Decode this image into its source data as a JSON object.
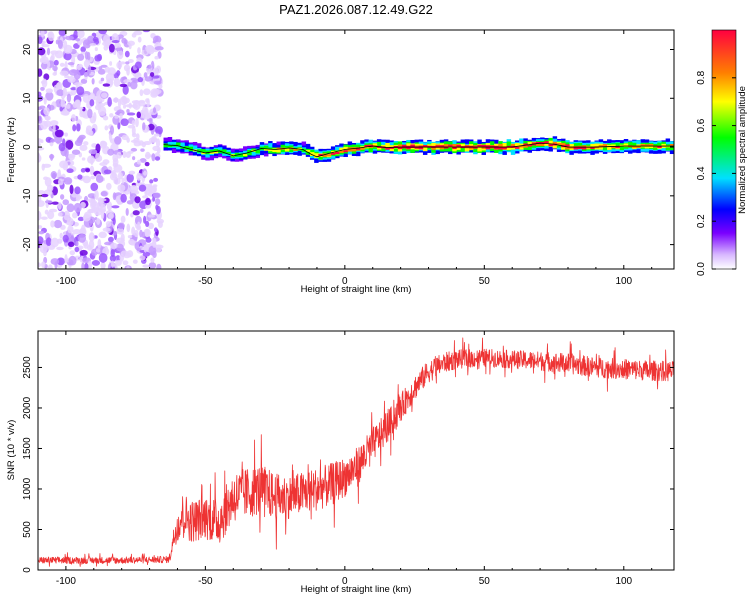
{
  "figure_title": "PAZ1.2026.087.12.49.G22",
  "chart_data": [
    {
      "type": "heatmap",
      "name": "spectrogram",
      "xlabel": "Height of straight line (km)",
      "ylabel": "Frequency (Hz)",
      "xlim": [
        -110,
        118
      ],
      "ylim": [
        -25,
        24
      ],
      "xticks": [
        -100,
        -50,
        0,
        50,
        100
      ],
      "yticks": [
        -20,
        -10,
        0,
        10,
        20
      ],
      "colorbar": {
        "label": "Normalized spectral amplitude",
        "range": [
          0,
          1
        ],
        "ticks": [
          0.0,
          0.2,
          0.4,
          0.6,
          0.8
        ]
      },
      "noise_region_x": [
        -110,
        -66
      ],
      "ridge": {
        "x": [
          -65,
          -60,
          -55,
          -50,
          -45,
          -40,
          -35,
          -30,
          -25,
          -20,
          -15,
          -12,
          -10,
          -5,
          0,
          5,
          10,
          15,
          20,
          30,
          40,
          50,
          60,
          70,
          75,
          80,
          90,
          100,
          110,
          118
        ],
        "f": [
          0.5,
          0.3,
          -0.5,
          -1.2,
          -0.8,
          -1.8,
          -1.2,
          -0.3,
          -0.5,
          -0.2,
          -0.5,
          -1.5,
          -2.0,
          -1.2,
          -0.5,
          -0.2,
          0.2,
          -0.1,
          0.0,
          0.0,
          0.0,
          0.0,
          0.0,
          0.8,
          0.6,
          0.0,
          0.0,
          0.2,
          0.2,
          0.2
        ],
        "amp": [
          0.45,
          0.5,
          0.5,
          0.55,
          0.5,
          0.5,
          0.55,
          0.6,
          0.65,
          0.7,
          0.6,
          0.75,
          0.8,
          0.8,
          0.85,
          0.88,
          0.9,
          0.92,
          0.95,
          0.95,
          0.95,
          0.95,
          0.92,
          0.9,
          0.9,
          0.9,
          0.85,
          0.7,
          0.75,
          0.7
        ]
      }
    },
    {
      "type": "line",
      "name": "snr",
      "xlabel": "Height of straight line (km)",
      "ylabel": "SNR (10 * v/v)",
      "xlim": [
        -110,
        118
      ],
      "ylim": [
        0,
        2950
      ],
      "xticks": [
        -100,
        -50,
        0,
        50,
        100
      ],
      "yticks": [
        0,
        500,
        1000,
        1500,
        2000,
        2500
      ],
      "color": "#ee3333",
      "mean_curve": {
        "x": [
          -110,
          -100,
          -80,
          -63,
          -61,
          -58,
          -55,
          -50,
          -45,
          -40,
          -35,
          -30,
          -25,
          -20,
          -15,
          -10,
          -5,
          0,
          5,
          10,
          15,
          20,
          25,
          30,
          35,
          40,
          50,
          60,
          70,
          80,
          90,
          100,
          110,
          118
        ],
        "y": [
          120,
          120,
          120,
          130,
          450,
          700,
          600,
          650,
          600,
          900,
          950,
          1000,
          900,
          900,
          950,
          1000,
          1050,
          1150,
          1300,
          1550,
          1750,
          2000,
          2250,
          2450,
          2550,
          2600,
          2620,
          2600,
          2580,
          2550,
          2500,
          2480,
          2460,
          2450
        ],
        "noise": [
          60,
          60,
          60,
          60,
          220,
          380,
          380,
          380,
          420,
          450,
          450,
          450,
          420,
          380,
          380,
          380,
          380,
          350,
          330,
          300,
          280,
          250,
          220,
          200,
          180,
          170,
          160,
          160,
          170,
          180,
          180,
          180,
          180,
          180
        ]
      }
    }
  ]
}
